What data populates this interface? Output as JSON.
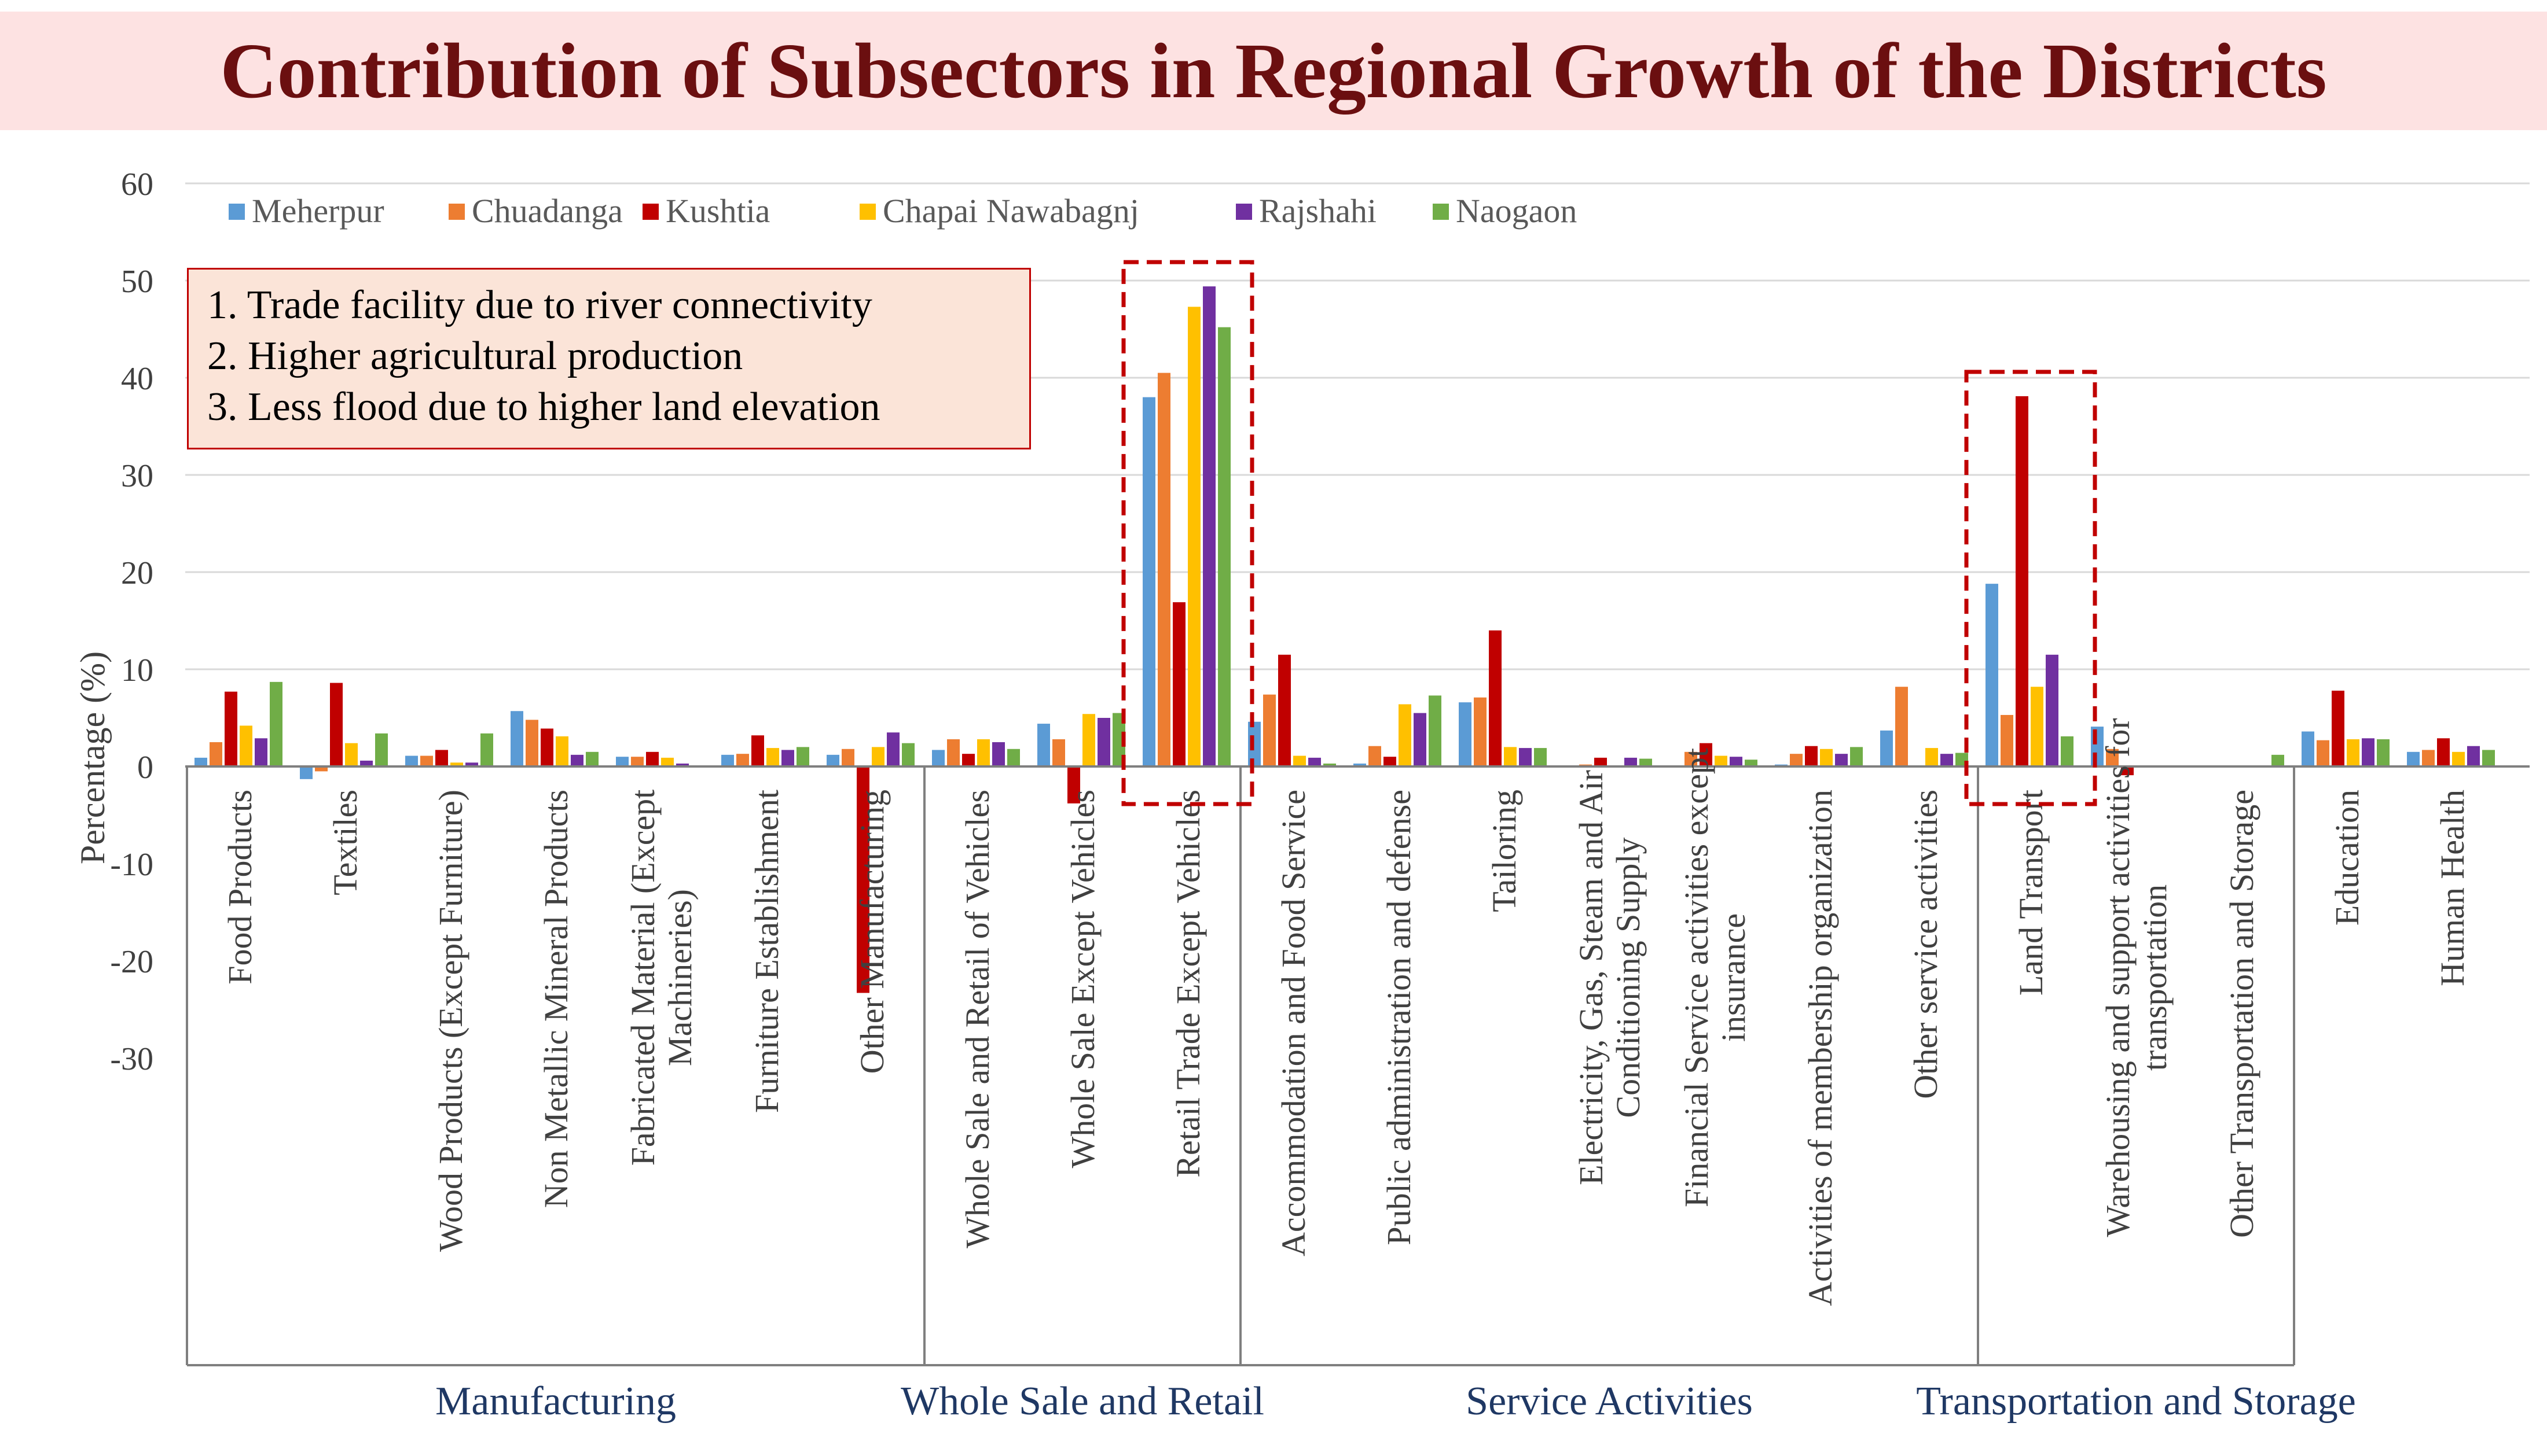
{
  "title": "Contribution of Subsectors in Regional Growth of the Districts",
  "colors": {
    "title_band": "#fde2e2",
    "title_text": "#6b0f10",
    "group_label": "#1f3864",
    "highlight": "#c00000"
  },
  "notes": [
    "1.  Trade facility due to river connectivity",
    "2.  Higher agricultural production",
    "3.  Less flood due to higher land elevation"
  ],
  "chart_data": {
    "type": "bar",
    "title": "Contribution of Subsectors in Regional Growth of the Districts",
    "ylabel": "Percentage (%)",
    "xlabel": "",
    "ylim": [
      -30,
      60
    ],
    "yticks": [
      60,
      50,
      40,
      30,
      20,
      10,
      0,
      -10,
      -20,
      -30
    ],
    "grid": true,
    "legend_position": "top-left",
    "categories": [
      "Food Products",
      "Textiles",
      "Wood Products (Except Furniture)",
      "Non Metallic Mineral Products",
      "Fabricated Material (Except Machineries)",
      "Furniture Establishment",
      "Other Manufacturing",
      "Whole Sale and Retail of Vehicles",
      "Whole Sale Except Vehicles",
      "Retail Trade Except Vehicles",
      "Accommodation and Food Service",
      "Public administration and defense",
      "Tailoring",
      "Electricity, Gas, Steam and Air Conditioning Supply",
      "Financial Service activities except insurance",
      "Activities of membership organization",
      "Other service activities",
      "Land Transport",
      "Warehousing and support activities for transportation",
      "Other Transportation and Storage",
      "Education",
      "Human Health"
    ],
    "category_label_lines": [
      [
        "Food Products"
      ],
      [
        "Textiles"
      ],
      [
        "Wood Products (Except Furniture)"
      ],
      [
        "Non Metallic Mineral Products"
      ],
      [
        "Fabricated Material (Except",
        "Machineries)"
      ],
      [
        "Furniture Establishment"
      ],
      [
        "Other Manufacturing"
      ],
      [
        "Whole Sale and Retail of Vehicles"
      ],
      [
        "Whole Sale Except Vehicles"
      ],
      [
        "Retail Trade Except Vehicles"
      ],
      [
        "Accommodation and Food Service"
      ],
      [
        "Public administration and defense"
      ],
      [
        "Tailoring"
      ],
      [
        "Electricity, Gas, Steam and Air",
        "Conditioning Supply"
      ],
      [
        "Financial Service activities except",
        "insurance"
      ],
      [
        "Activities of membership organization"
      ],
      [
        "Other service activities"
      ],
      [
        "Land Transport"
      ],
      [
        "Warehousing and support activities for",
        "transportation"
      ],
      [
        "Other Transportation and Storage"
      ],
      [
        "Education"
      ],
      [
        "Human Health"
      ]
    ],
    "series": [
      {
        "name": "Meherpur",
        "color": "#5b9bd5",
        "values": [
          0.9,
          -1.3,
          1.1,
          5.7,
          1.0,
          1.2,
          1.2,
          1.7,
          4.4,
          38.0,
          4.6,
          0.3,
          6.6,
          0.1,
          0.1,
          0.2,
          3.7,
          18.8,
          4.1,
          0.0,
          3.6,
          1.5
        ]
      },
      {
        "name": "Chuadanga",
        "color": "#ed7d31",
        "values": [
          2.5,
          -0.5,
          1.1,
          4.8,
          1.0,
          1.3,
          1.8,
          2.8,
          2.8,
          40.5,
          7.4,
          2.1,
          7.1,
          0.2,
          1.5,
          1.3,
          8.2,
          5.3,
          1.8,
          0.0,
          2.7,
          1.7
        ]
      },
      {
        "name": "Kushtia",
        "color": "#c00000",
        "values": [
          7.7,
          8.6,
          1.7,
          3.9,
          1.5,
          3.2,
          -23.3,
          1.3,
          -3.8,
          16.9,
          11.5,
          1.0,
          14.0,
          0.9,
          2.4,
          2.1,
          0.0,
          38.1,
          -0.9,
          0.0,
          7.8,
          2.9
        ]
      },
      {
        "name": "Chapai Nawabagnj",
        "color": "#ffc000",
        "values": [
          4.2,
          2.4,
          0.4,
          3.1,
          0.9,
          1.9,
          2.0,
          2.8,
          5.4,
          47.3,
          1.1,
          6.4,
          2.0,
          0.0,
          1.1,
          1.8,
          1.9,
          8.2,
          0.0,
          0.0,
          2.8,
          1.5
        ]
      },
      {
        "name": "Rajshahi",
        "color": "#7030a0",
        "values": [
          2.9,
          0.6,
          0.4,
          1.2,
          0.3,
          1.7,
          3.5,
          2.5,
          5.0,
          49.4,
          0.9,
          5.5,
          1.9,
          0.9,
          1.0,
          1.3,
          1.3,
          11.5,
          0.0,
          0.0,
          2.9,
          2.1
        ]
      },
      {
        "name": "Naogaon",
        "color": "#70ad47",
        "values": [
          8.7,
          3.4,
          3.4,
          1.5,
          0.1,
          2.0,
          2.4,
          1.8,
          5.5,
          45.2,
          0.3,
          7.3,
          1.9,
          0.8,
          0.7,
          2.0,
          1.4,
          3.1,
          0.0,
          1.2,
          2.8,
          1.7
        ]
      }
    ],
    "groups": [
      {
        "label": "Manufacturing",
        "first": 0,
        "last": 6
      },
      {
        "label": "Whole Sale and Retail",
        "first": 7,
        "last": 9
      },
      {
        "label": "Service Activities",
        "first": 10,
        "last": 16
      },
      {
        "label": "Transportation and Storage",
        "first": 17,
        "last": 19
      }
    ],
    "highlighted_categories": [
      9,
      17
    ]
  }
}
